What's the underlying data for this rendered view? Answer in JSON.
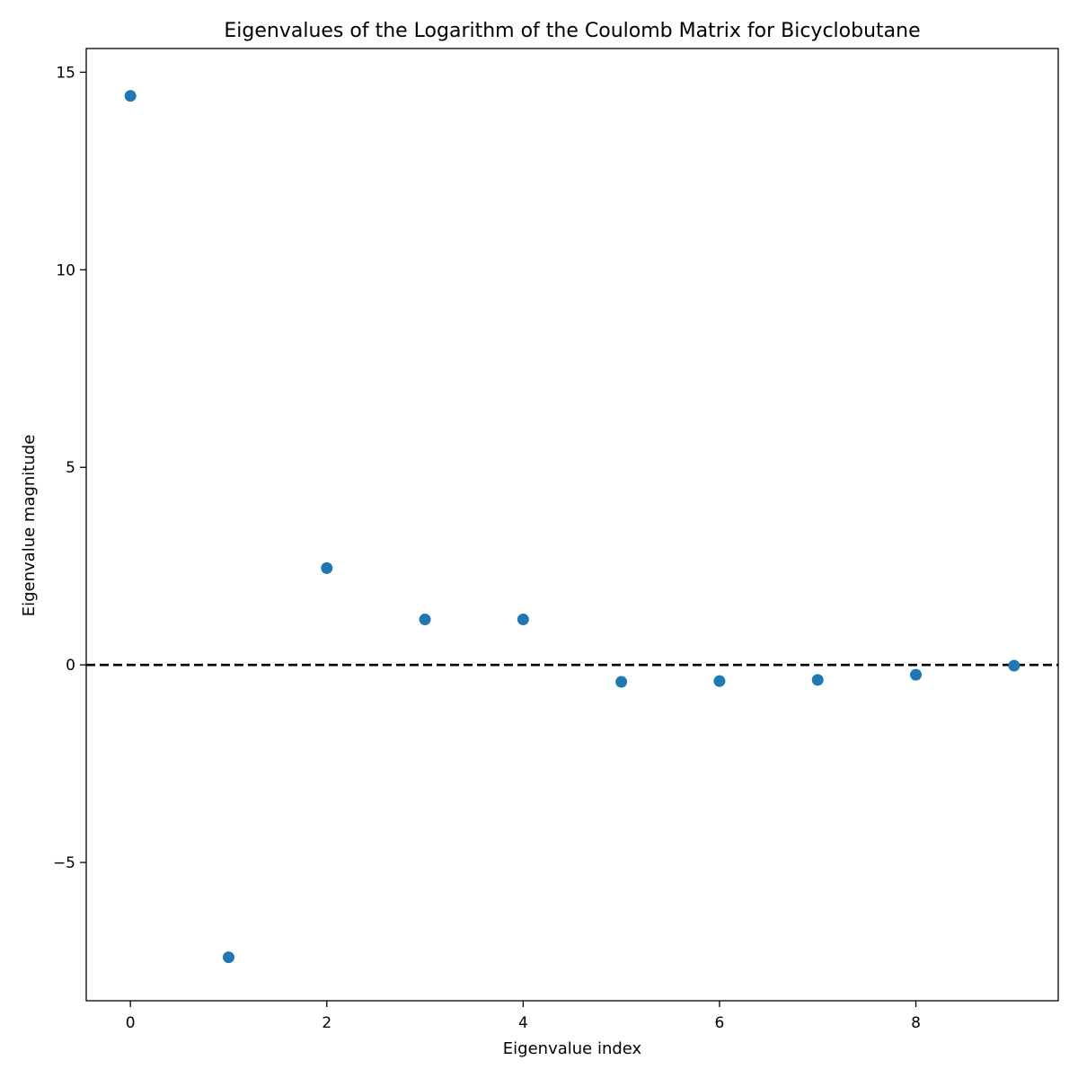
{
  "chart_data": {
    "type": "scatter",
    "title": "Eigenvalues of the Logarithm of the Coulomb Matrix for Bicyclobutane",
    "xlabel": "Eigenvalue index",
    "ylabel": "Eigenvalue magnitude",
    "x": [
      0,
      1,
      2,
      3,
      4,
      5,
      6,
      7,
      8,
      9
    ],
    "y": [
      14.4,
      -7.4,
      2.45,
      1.15,
      1.15,
      -0.43,
      -0.41,
      -0.38,
      -0.25,
      -0.02
    ],
    "xlim": [
      -0.45,
      9.45
    ],
    "ylim": [
      -8.5,
      15.6
    ],
    "xticks": [
      0,
      2,
      4,
      6,
      8
    ],
    "xtick_labels": [
      "0",
      "2",
      "4",
      "6",
      "8"
    ],
    "yticks": [
      -5,
      0,
      5,
      10,
      15
    ],
    "ytick_labels": [
      "−5",
      "0",
      "5",
      "10",
      "15"
    ],
    "reference_line": {
      "y": 0,
      "style": "dashed",
      "color": "#000000"
    },
    "marker_color": "#1f77b4",
    "grid": false,
    "legend": "none"
  }
}
